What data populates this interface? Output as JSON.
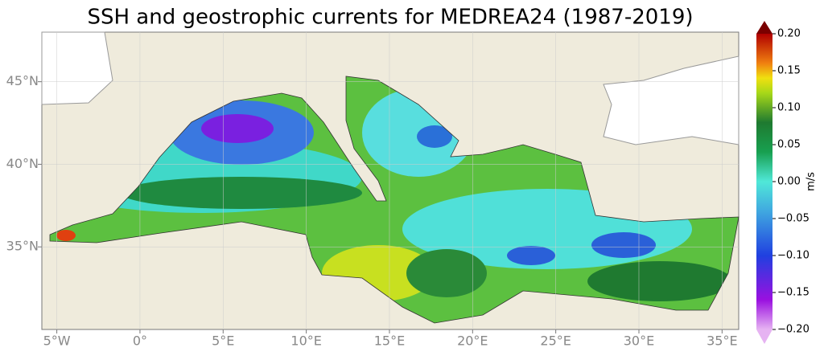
{
  "chart_data": {
    "type": "map",
    "title": "SSH and geostrophic currents for MEDREA24 (1987-2019)",
    "xlim": [
      -5.9,
      36
    ],
    "ylim": [
      30,
      48
    ],
    "xticks": [
      {
        "value": -5,
        "label": "5°W"
      },
      {
        "value": 0,
        "label": "0°"
      },
      {
        "value": 5,
        "label": "5°E"
      },
      {
        "value": 10,
        "label": "10°E"
      },
      {
        "value": 15,
        "label": "15°E"
      },
      {
        "value": 20,
        "label": "20°E"
      },
      {
        "value": 25,
        "label": "25°E"
      },
      {
        "value": 30,
        "label": "30°E"
      },
      {
        "value": 35,
        "label": "35°E"
      }
    ],
    "yticks": [
      {
        "value": 35,
        "label": "35°N"
      },
      {
        "value": 40,
        "label": "40°N"
      },
      {
        "value": 45,
        "label": "45°N"
      }
    ],
    "colorbar": {
      "label": "m/s",
      "lim": [
        -0.2,
        0.2
      ],
      "ticks": [
        {
          "value": 0.2,
          "label": "0.20"
        },
        {
          "value": 0.15,
          "label": "0.15"
        },
        {
          "value": 0.1,
          "label": "0.10"
        },
        {
          "value": 0.05,
          "label": "0.05"
        },
        {
          "value": 0,
          "label": "0.00"
        },
        {
          "value": -0.05,
          "label": "−0.05"
        },
        {
          "value": -0.1,
          "label": "−0.10"
        },
        {
          "value": -0.15,
          "label": "−0.15"
        },
        {
          "value": -0.2,
          "label": "−0.20"
        }
      ]
    }
  }
}
